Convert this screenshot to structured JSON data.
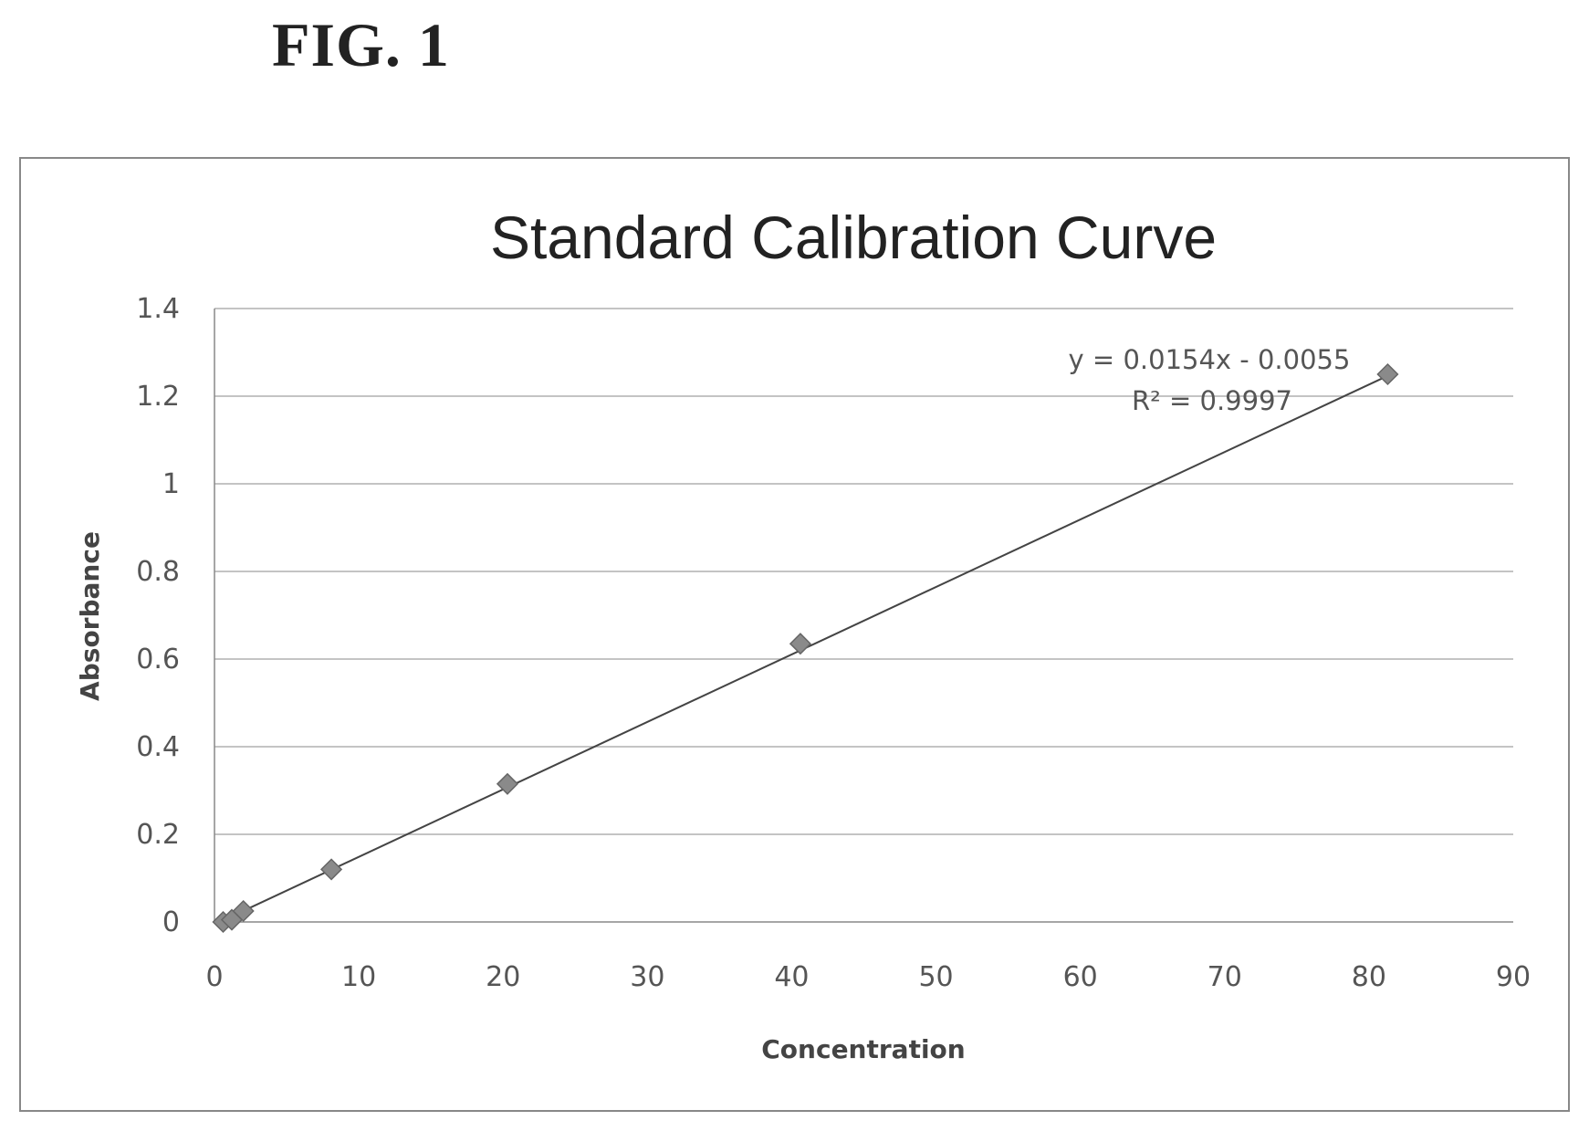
{
  "figure": {
    "label": "FIG. 1"
  },
  "chart_data": {
    "type": "scatter",
    "title": "Standard Calibration Curve",
    "xlabel": "Concentration",
    "ylabel": "Absorbance",
    "xlim": [
      0,
      90
    ],
    "ylim": [
      0,
      1.4
    ],
    "xticks": [
      "0",
      "10",
      "20",
      "30",
      "40",
      "50",
      "60",
      "70",
      "80",
      "90"
    ],
    "yticks": [
      "0",
      "0.2",
      "0.4",
      "0.6",
      "0.8",
      "1",
      "1.2",
      "1.4"
    ],
    "grid": "horizontal",
    "series": [
      {
        "x": [
          0.6,
          1.2,
          2.0,
          8.1,
          20.3,
          40.6,
          81.3
        ],
        "y": [
          0.0,
          0.005,
          0.025,
          0.12,
          0.315,
          0.635,
          1.25
        ]
      }
    ],
    "trendline": {
      "slope": 0.0154,
      "intercept": -0.0055,
      "x_range": [
        0.6,
        81.3
      ]
    },
    "annotations": {
      "equation": "y = 0.0154x - 0.0055",
      "r_squared": "R² = 0.9997"
    },
    "colors": {
      "marker": "#8a8a8a",
      "line": "#444444",
      "grid": "#b0b0b0",
      "frame": "#888888"
    }
  }
}
